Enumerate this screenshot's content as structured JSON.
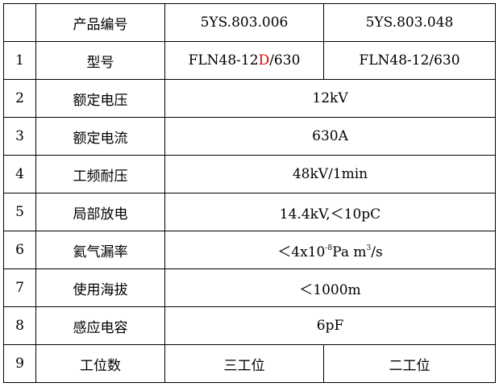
{
  "header": {
    "num": "",
    "name": "产品编号",
    "v1": "5YS.803.006",
    "v2": "5YS.803.048"
  },
  "rows": [
    {
      "num": "1",
      "name": "型号",
      "v1_pre": "FLN48-12",
      "v1_red": "D",
      "v1_post": "/630",
      "v2": "FLN48-12/630"
    },
    {
      "num": "2",
      "name": "额定电压",
      "value": "12kV"
    },
    {
      "num": "3",
      "name": "额定电流",
      "value": "630A"
    },
    {
      "num": "4",
      "name": "工频耐压",
      "value": "48kV/1min"
    },
    {
      "num": "5",
      "name": "局部放电",
      "value": "14.4kV,＜10pC"
    },
    {
      "num": "6",
      "name": "氦气漏率",
      "value_a": "＜4x10",
      "value_exp": "-8",
      "value_b": "Pa m",
      "value_exp2": "3",
      "value_c": "/s"
    },
    {
      "num": "7",
      "name": "使用海拔",
      "value": "＜1000m"
    },
    {
      "num": "8",
      "name": "感应电容",
      "value": "6pF"
    },
    {
      "num": "9",
      "name": "工位数",
      "v1": "三工位",
      "v2": "二工位"
    }
  ],
  "colors": {
    "highlight": "#e00000",
    "border": "#000000"
  }
}
